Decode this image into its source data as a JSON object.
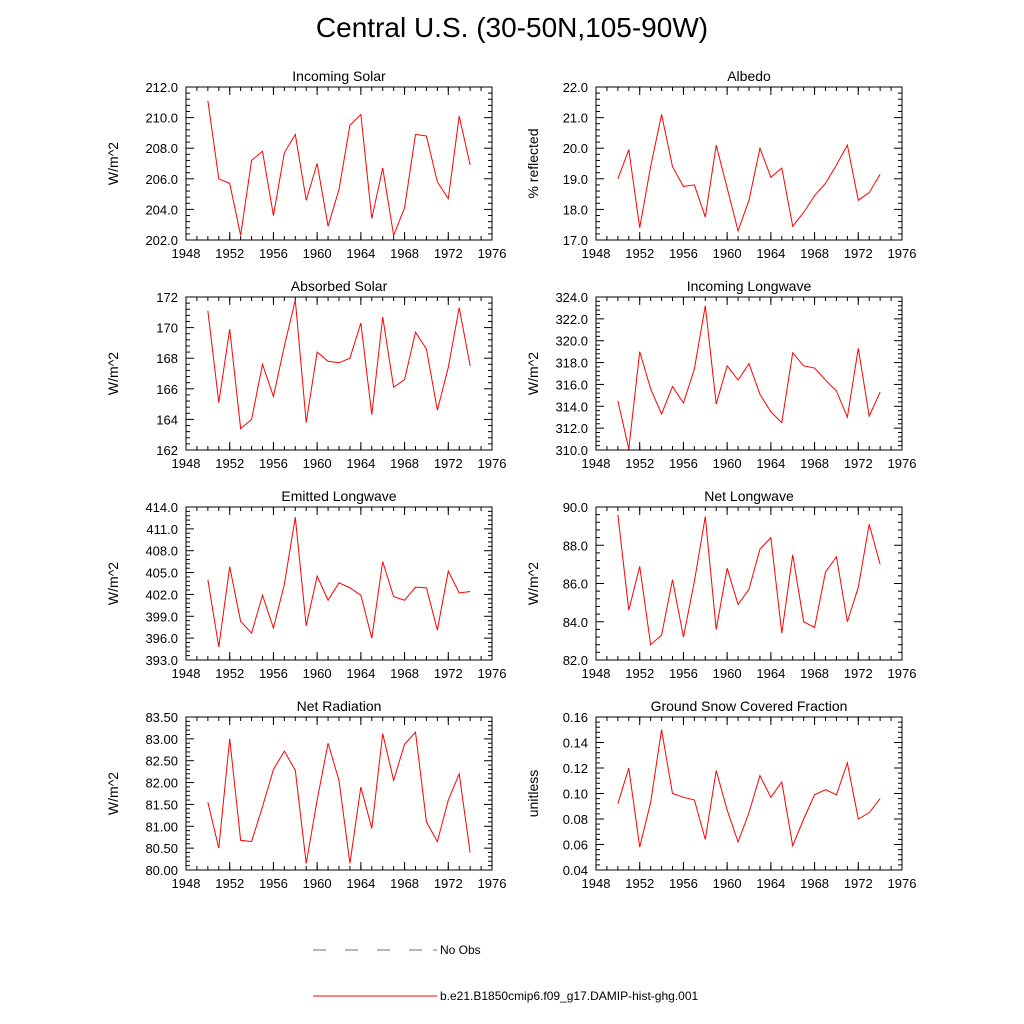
{
  "title": "Central U.S. (30-50N,105-90W)",
  "colors": {
    "model": "#ff0000",
    "obs": "#6666cc",
    "axis": "#000000"
  },
  "legend": [
    {
      "label": "No Obs",
      "style": "dashed",
      "color": "#6666cc"
    },
    {
      "label": "b.e21.B1850cmip6.f09_g17.DAMIP-hist-ghg.001",
      "style": "solid",
      "color": "#ff0000"
    }
  ],
  "chart_data": [
    {
      "type": "line",
      "title": "Incoming Solar",
      "ylabel": "W/m^2",
      "xlim": [
        1948,
        1976
      ],
      "ylim": [
        202,
        212
      ],
      "xticks": [
        "1948",
        "1952",
        "1956",
        "1960",
        "1964",
        "1968",
        "1972",
        "1976"
      ],
      "yticks": [
        "202.0",
        "204.0",
        "206.0",
        "208.0",
        "210.0",
        "212.0"
      ],
      "x": [
        1950,
        1951,
        1952,
        1953,
        1954,
        1955,
        1956,
        1957,
        1958,
        1959,
        1960,
        1961,
        1962,
        1963,
        1964,
        1965,
        1966,
        1967,
        1968,
        1969,
        1970,
        1971,
        1972,
        1973,
        1974
      ],
      "series": [
        {
          "values": [
            211.1,
            206.0,
            205.7,
            202.3,
            207.2,
            207.8,
            203.6,
            207.7,
            208.9,
            204.6,
            207.0,
            202.9,
            205.3,
            209.5,
            210.2,
            203.4,
            206.7,
            202.3,
            204.1,
            208.9,
            208.8,
            205.8,
            204.7,
            210.1,
            206.9
          ]
        }
      ]
    },
    {
      "type": "line",
      "title": "Albedo",
      "ylabel": "% reflected",
      "xlim": [
        1948,
        1976
      ],
      "ylim": [
        17,
        22
      ],
      "xticks": [
        "1948",
        "1952",
        "1956",
        "1960",
        "1964",
        "1968",
        "1972",
        "1976"
      ],
      "yticks": [
        "17.0",
        "18.0",
        "19.0",
        "20.0",
        "21.0",
        "22.0"
      ],
      "x": [
        1950,
        1951,
        1952,
        1953,
        1954,
        1955,
        1956,
        1957,
        1958,
        1959,
        1960,
        1961,
        1962,
        1963,
        1964,
        1965,
        1966,
        1967,
        1968,
        1969,
        1970,
        1971,
        1972,
        1973,
        1974
      ],
      "series": [
        {
          "values": [
            19.0,
            19.95,
            17.4,
            19.4,
            21.1,
            19.4,
            18.75,
            18.8,
            17.75,
            20.1,
            18.7,
            17.3,
            18.3,
            20.0,
            19.05,
            19.35,
            17.45,
            17.9,
            18.45,
            18.85,
            19.45,
            20.1,
            18.3,
            18.55,
            19.15
          ]
        }
      ]
    },
    {
      "type": "line",
      "title": "Absorbed Solar",
      "ylabel": "W/m^2",
      "xlim": [
        1948,
        1976
      ],
      "ylim": [
        162,
        172
      ],
      "xticks": [
        "1948",
        "1952",
        "1956",
        "1960",
        "1964",
        "1968",
        "1972",
        "1976"
      ],
      "yticks": [
        "162",
        "164",
        "166",
        "168",
        "170",
        "172"
      ],
      "x": [
        1950,
        1951,
        1952,
        1953,
        1954,
        1955,
        1956,
        1957,
        1958,
        1959,
        1960,
        1961,
        1962,
        1963,
        1964,
        1965,
        1966,
        1967,
        1968,
        1969,
        1970,
        1971,
        1972,
        1973,
        1974
      ],
      "series": [
        {
          "values": [
            171.1,
            165.1,
            169.9,
            163.4,
            164.0,
            167.6,
            165.5,
            168.8,
            171.8,
            163.8,
            168.4,
            167.8,
            167.7,
            168.0,
            170.3,
            164.3,
            170.7,
            166.1,
            166.6,
            169.7,
            168.6,
            164.6,
            167.4,
            171.3,
            167.5
          ]
        }
      ]
    },
    {
      "type": "line",
      "title": "Incoming Longwave",
      "ylabel": "W/m^2",
      "xlim": [
        1948,
        1976
      ],
      "ylim": [
        310,
        324
      ],
      "xticks": [
        "1948",
        "1952",
        "1956",
        "1960",
        "1964",
        "1968",
        "1972",
        "1976"
      ],
      "yticks": [
        "310.0",
        "312.0",
        "314.0",
        "316.0",
        "318.0",
        "320.0",
        "322.0",
        "324.0"
      ],
      "x": [
        1950,
        1951,
        1952,
        1953,
        1954,
        1955,
        1956,
        1957,
        1958,
        1959,
        1960,
        1961,
        1962,
        1963,
        1964,
        1965,
        1966,
        1967,
        1968,
        1969,
        1970,
        1971,
        1972,
        1973,
        1974
      ],
      "series": [
        {
          "values": [
            314.5,
            310.1,
            319.0,
            315.6,
            313.3,
            315.8,
            314.3,
            317.4,
            323.2,
            314.2,
            317.7,
            316.4,
            317.9,
            315.1,
            313.5,
            312.5,
            318.9,
            317.7,
            317.5,
            316.4,
            315.4,
            313.0,
            319.3,
            313.1,
            315.3
          ]
        }
      ]
    },
    {
      "type": "line",
      "title": "Emitted Longwave",
      "ylabel": "W/m^2",
      "xlim": [
        1948,
        1976
      ],
      "ylim": [
        393,
        414
      ],
      "xticks": [
        "1948",
        "1952",
        "1956",
        "1960",
        "1964",
        "1968",
        "1972",
        "1976"
      ],
      "yticks": [
        "393.0",
        "396.0",
        "399.0",
        "402.0",
        "405.0",
        "408.0",
        "411.0",
        "414.0"
      ],
      "x": [
        1950,
        1951,
        1952,
        1953,
        1954,
        1955,
        1956,
        1957,
        1958,
        1959,
        1960,
        1961,
        1962,
        1963,
        1964,
        1965,
        1966,
        1967,
        1968,
        1969,
        1970,
        1971,
        1972,
        1973,
        1974
      ],
      "series": [
        {
          "values": [
            404.0,
            394.8,
            405.8,
            398.3,
            396.7,
            401.9,
            397.4,
            403.4,
            412.6,
            397.7,
            404.5,
            401.2,
            403.6,
            402.9,
            401.9,
            396.0,
            406.5,
            401.7,
            401.2,
            403.0,
            402.9,
            397.1,
            405.2,
            402.2,
            402.4
          ]
        }
      ]
    },
    {
      "type": "line",
      "title": "Net Longwave",
      "ylabel": "W/m^2",
      "xlim": [
        1948,
        1976
      ],
      "ylim": [
        82,
        90
      ],
      "xticks": [
        "1948",
        "1952",
        "1956",
        "1960",
        "1964",
        "1968",
        "1972",
        "1976"
      ],
      "yticks": [
        "82.0",
        "84.0",
        "86.0",
        "88.0",
        "90.0"
      ],
      "x": [
        1950,
        1951,
        1952,
        1953,
        1954,
        1955,
        1956,
        1957,
        1958,
        1959,
        1960,
        1961,
        1962,
        1963,
        1964,
        1965,
        1966,
        1967,
        1968,
        1969,
        1970,
        1971,
        1972,
        1973,
        1974
      ],
      "series": [
        {
          "values": [
            89.6,
            84.6,
            86.9,
            82.8,
            83.3,
            86.2,
            83.2,
            86.1,
            89.5,
            83.6,
            86.8,
            84.9,
            85.7,
            87.8,
            88.4,
            83.4,
            87.5,
            84.0,
            83.7,
            86.6,
            87.4,
            84.0,
            85.8,
            89.1,
            87.0
          ]
        }
      ]
    },
    {
      "type": "line",
      "title": "Net Radiation",
      "ylabel": "W/m^2",
      "xlim": [
        1948,
        1976
      ],
      "ylim": [
        80,
        83.5
      ],
      "xticks": [
        "1948",
        "1952",
        "1956",
        "1960",
        "1964",
        "1968",
        "1972",
        "1976"
      ],
      "yticks": [
        "80.00",
        "80.50",
        "81.00",
        "81.50",
        "82.00",
        "82.50",
        "83.00",
        "83.50"
      ],
      "x": [
        1950,
        1951,
        1952,
        1953,
        1954,
        1955,
        1956,
        1957,
        1958,
        1959,
        1960,
        1961,
        1962,
        1963,
        1964,
        1965,
        1966,
        1967,
        1968,
        1969,
        1970,
        1971,
        1972,
        1973,
        1974
      ],
      "series": [
        {
          "values": [
            81.55,
            80.5,
            83.0,
            80.68,
            80.65,
            81.45,
            82.3,
            82.72,
            82.28,
            80.15,
            81.6,
            82.9,
            82.05,
            80.15,
            81.9,
            80.95,
            83.12,
            82.05,
            82.88,
            83.15,
            81.1,
            80.65,
            81.6,
            82.2,
            80.4
          ]
        }
      ]
    },
    {
      "type": "line",
      "title": "Ground Snow Covered Fraction",
      "ylabel": "unitless",
      "xlim": [
        1948,
        1976
      ],
      "ylim": [
        0.04,
        0.16
      ],
      "xticks": [
        "1948",
        "1952",
        "1956",
        "1960",
        "1964",
        "1968",
        "1972",
        "1976"
      ],
      "yticks": [
        "0.04",
        "0.06",
        "0.08",
        "0.10",
        "0.12",
        "0.14",
        "0.16"
      ],
      "x": [
        1950,
        1951,
        1952,
        1953,
        1954,
        1955,
        1956,
        1957,
        1958,
        1959,
        1960,
        1961,
        1962,
        1963,
        1964,
        1965,
        1966,
        1967,
        1968,
        1969,
        1970,
        1971,
        1972,
        1973,
        1974
      ],
      "series": [
        {
          "values": [
            0.092,
            0.12,
            0.058,
            0.093,
            0.15,
            0.1,
            0.097,
            0.095,
            0.064,
            0.118,
            0.087,
            0.062,
            0.085,
            0.114,
            0.097,
            0.109,
            0.059,
            0.08,
            0.099,
            0.103,
            0.099,
            0.124,
            0.08,
            0.085,
            0.096
          ]
        }
      ]
    }
  ]
}
